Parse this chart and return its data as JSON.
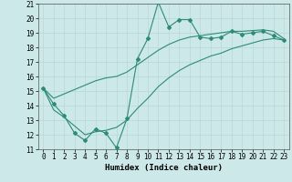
{
  "xlabel": "Humidex (Indice chaleur)",
  "x_data": [
    0,
    1,
    2,
    3,
    4,
    5,
    6,
    7,
    8,
    9,
    10,
    11,
    12,
    13,
    14,
    15,
    16,
    17,
    18,
    19,
    20,
    21,
    22,
    23
  ],
  "y_main": [
    15.2,
    14.1,
    13.3,
    12.1,
    11.6,
    12.4,
    12.1,
    11.1,
    13.1,
    17.2,
    18.6,
    21.1,
    19.4,
    19.9,
    19.9,
    18.7,
    18.6,
    18.7,
    19.1,
    18.9,
    19.0,
    19.1,
    18.8,
    18.5
  ],
  "y_upper": [
    15.2,
    14.5,
    14.8,
    15.1,
    15.4,
    15.7,
    15.9,
    16.0,
    16.3,
    16.8,
    17.3,
    17.8,
    18.2,
    18.5,
    18.7,
    18.8,
    18.9,
    19.0,
    19.1,
    19.1,
    19.15,
    19.2,
    19.1,
    18.6
  ],
  "y_lower": [
    15.2,
    13.7,
    13.2,
    12.6,
    12.0,
    12.2,
    12.3,
    12.5,
    13.0,
    13.8,
    14.5,
    15.3,
    15.9,
    16.4,
    16.8,
    17.1,
    17.4,
    17.6,
    17.9,
    18.1,
    18.3,
    18.5,
    18.6,
    18.5
  ],
  "main_color": "#2d8b77",
  "bg_color": "#cce8e8",
  "grid_color": "#b8d8d8",
  "ylim": [
    11,
    21
  ],
  "xlim": [
    -0.5,
    23.5
  ],
  "yticks": [
    11,
    12,
    13,
    14,
    15,
    16,
    17,
    18,
    19,
    20,
    21
  ],
  "xticks": [
    0,
    1,
    2,
    3,
    4,
    5,
    6,
    7,
    8,
    9,
    10,
    11,
    12,
    13,
    14,
    15,
    16,
    17,
    18,
    19,
    20,
    21,
    22,
    23
  ],
  "tick_fontsize": 5.5,
  "xlabel_fontsize": 6.5,
  "marker": "D",
  "markersize": 2.0
}
